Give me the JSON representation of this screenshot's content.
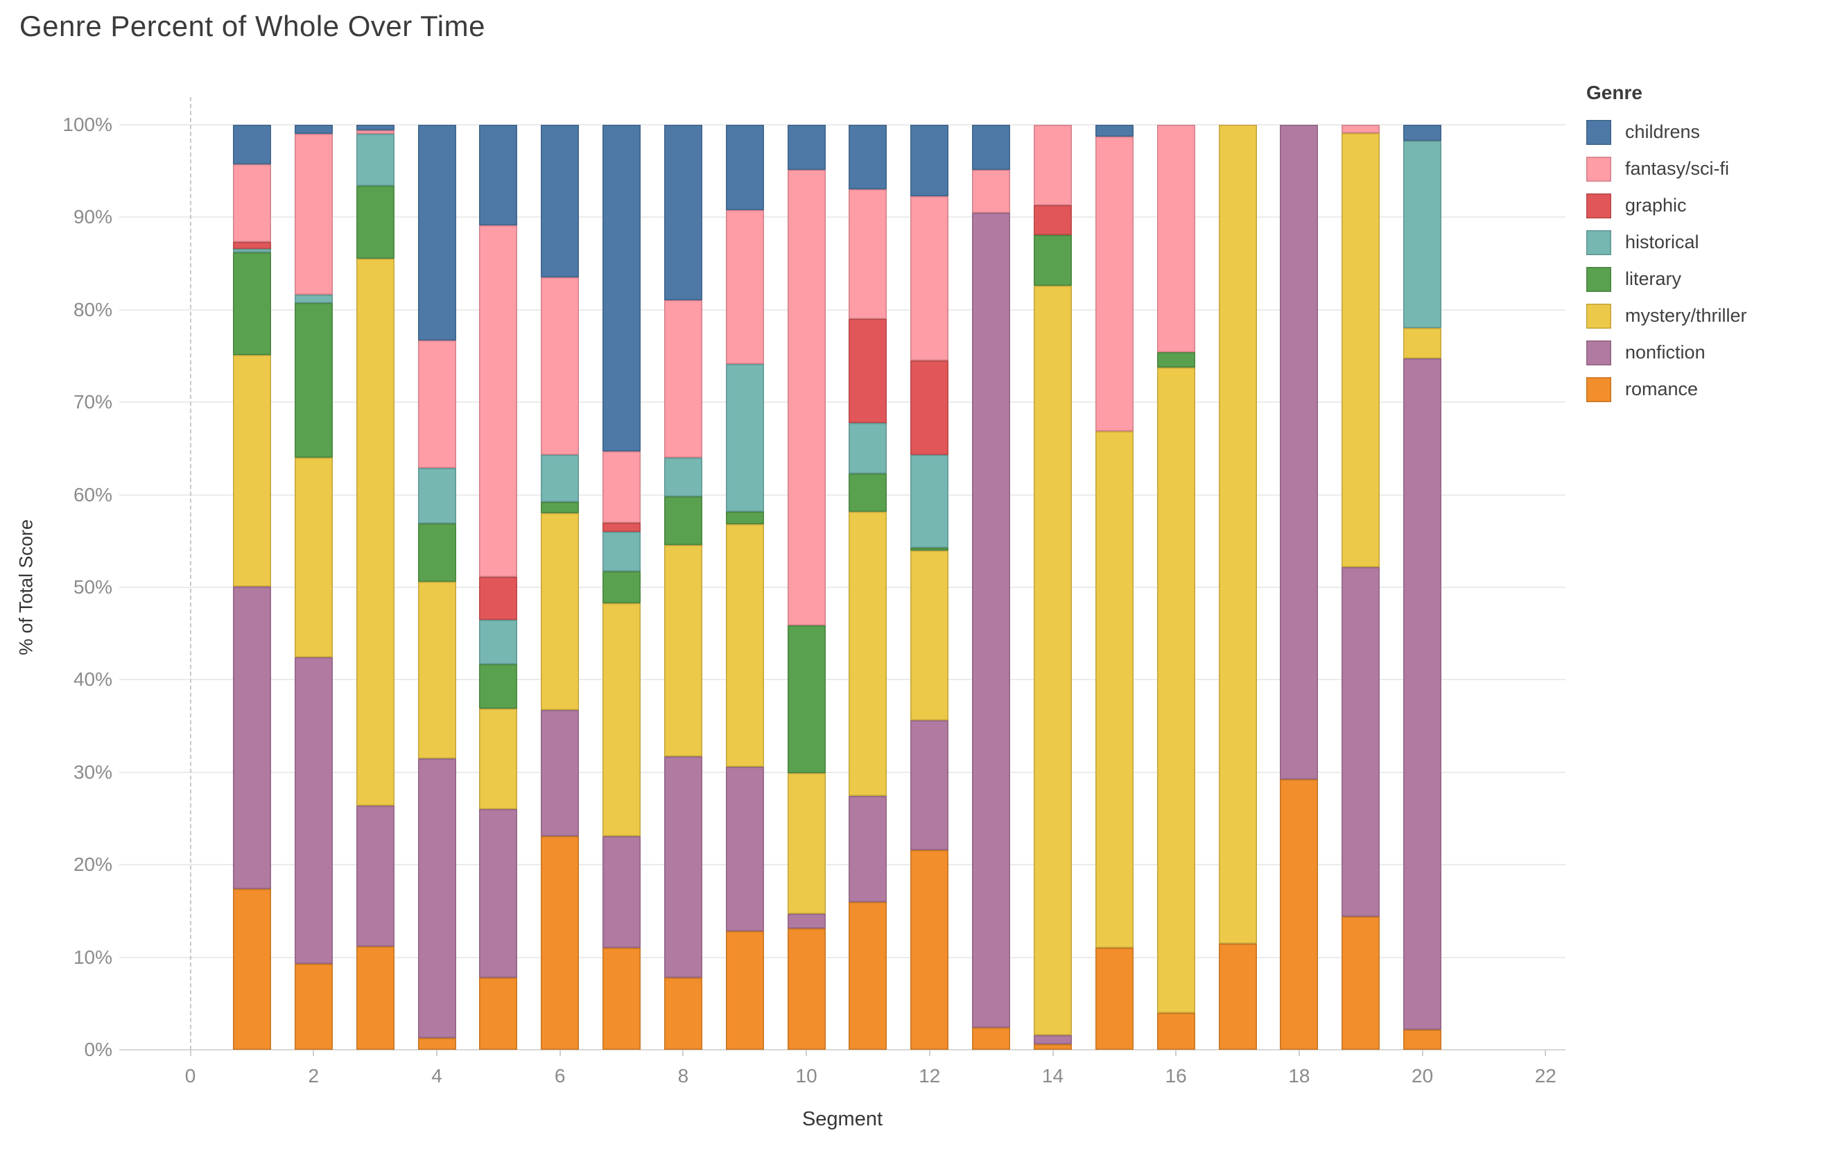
{
  "title": "Genre Percent of Whole Over Time",
  "legend": {
    "title": "Genre",
    "items": [
      {
        "label": "childrens",
        "color": "#4e79a7"
      },
      {
        "label": "fantasy/sci-fi",
        "color": "#ff9da7"
      },
      {
        "label": "graphic",
        "color": "#e15759"
      },
      {
        "label": "historical",
        "color": "#76b7b2"
      },
      {
        "label": "literary",
        "color": "#59a14f"
      },
      {
        "label": "mystery/thriller",
        "color": "#edc949"
      },
      {
        "label": "nonfiction",
        "color": "#b07aa1"
      },
      {
        "label": "romance",
        "color": "#f28e2b"
      }
    ]
  },
  "chart_data": {
    "type": "bar",
    "stacked": true,
    "title": "Genre Percent of Whole Over Time",
    "xlabel": "Segment",
    "ylabel": "% of Total Score",
    "x": [
      1,
      2,
      3,
      4,
      5,
      6,
      7,
      8,
      9,
      10,
      11,
      12,
      13,
      14,
      15,
      16,
      17,
      18,
      19,
      20
    ],
    "x_ticks": [
      0,
      2,
      4,
      6,
      8,
      10,
      12,
      14,
      16,
      18,
      20,
      22
    ],
    "y_ticks_percent": [
      0,
      10,
      20,
      30,
      40,
      50,
      60,
      70,
      80,
      90,
      100
    ],
    "ylim": [
      0,
      100
    ],
    "xlim": [
      0,
      22
    ],
    "grid": true,
    "legend_position": "right",
    "stack_order_bottom_to_top": [
      "romance",
      "nonfiction",
      "mystery/thriller",
      "literary",
      "historical",
      "graphic",
      "fantasy/sci-fi",
      "childrens"
    ],
    "series": [
      {
        "name": "childrens",
        "color": "#4e79a7",
        "values": [
          4.3,
          1.0,
          0.6,
          23.3,
          10.9,
          16.5,
          35.3,
          19.0,
          9.2,
          4.9,
          7.0,
          7.7,
          4.9,
          0,
          1.3,
          0,
          0,
          0,
          0,
          1.7
        ]
      },
      {
        "name": "fantasy/sci-fi",
        "color": "#ff9da7",
        "values": [
          8.4,
          17.4,
          0.4,
          13.8,
          38.0,
          19.2,
          7.7,
          17.0,
          16.7,
          49.2,
          14.0,
          17.8,
          4.6,
          8.7,
          31.8,
          24.6,
          0,
          0,
          0.9,
          0
        ]
      },
      {
        "name": "graphic",
        "color": "#e15759",
        "values": [
          0.7,
          0,
          0,
          0,
          4.6,
          0,
          1.0,
          0,
          0,
          0,
          11.2,
          10.2,
          0,
          3.2,
          0,
          0,
          0,
          0,
          0,
          0
        ]
      },
      {
        "name": "historical",
        "color": "#76b7b2",
        "values": [
          0.4,
          0.9,
          5.6,
          6.0,
          4.8,
          5.1,
          4.3,
          4.2,
          15.9,
          0,
          5.5,
          10.0,
          0,
          0,
          0,
          0,
          0,
          0,
          0,
          20.3
        ]
      },
      {
        "name": "literary",
        "color": "#59a14f",
        "values": [
          11.1,
          16.7,
          7.9,
          6.3,
          4.8,
          1.2,
          3.4,
          5.2,
          1.4,
          16.0,
          4.1,
          0.3,
          0,
          5.5,
          0,
          1.6,
          0,
          0,
          0,
          0
        ]
      },
      {
        "name": "mystery/thriller",
        "color": "#edc949",
        "values": [
          25.0,
          21.6,
          59.1,
          19.1,
          10.9,
          21.3,
          25.2,
          22.9,
          26.2,
          15.2,
          30.8,
          18.4,
          0,
          81.0,
          55.9,
          69.8,
          88.5,
          0,
          46.9,
          3.3
        ]
      },
      {
        "name": "nonfiction",
        "color": "#b07aa1",
        "values": [
          32.7,
          33.1,
          15.2,
          30.2,
          18.2,
          13.6,
          12.1,
          23.9,
          17.8,
          1.6,
          11.4,
          14.0,
          88.1,
          1.0,
          0,
          0,
          0,
          70.8,
          37.8,
          72.5
        ]
      },
      {
        "name": "romance",
        "color": "#f28e2b",
        "values": [
          17.4,
          9.3,
          11.2,
          1.3,
          7.8,
          23.1,
          11.0,
          7.8,
          12.8,
          13.1,
          16.0,
          21.6,
          2.4,
          0.6,
          11.0,
          4.0,
          11.5,
          29.2,
          14.4,
          2.2
        ]
      }
    ]
  }
}
